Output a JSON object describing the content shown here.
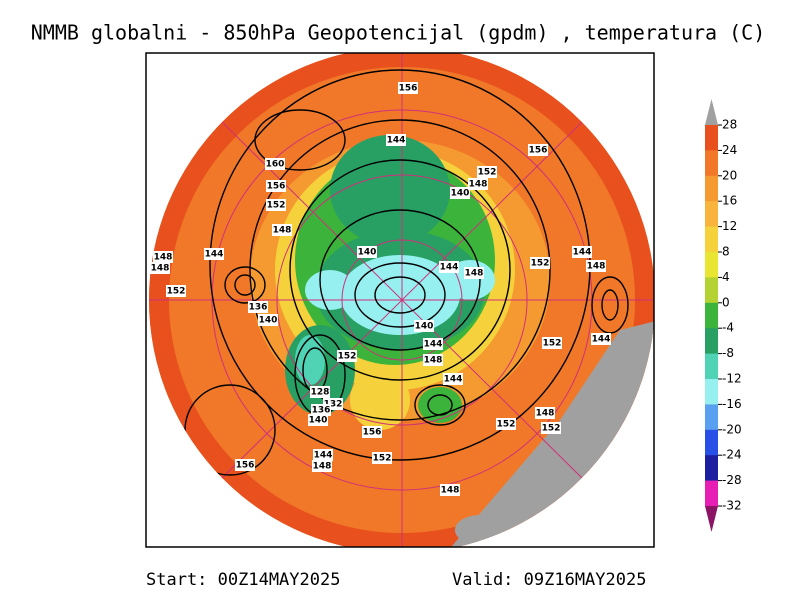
{
  "title": "NMMB globalni - 850hPa Geopotencijal (gpdm) , temperatura (C)",
  "start": "Start: 00Z14MAY2025",
  "valid": "Valid: 09Z16MAY2025",
  "legend": {
    "levels": [
      28,
      24,
      20,
      16,
      12,
      8,
      4,
      0,
      -4,
      -8,
      -12,
      -16,
      -20,
      -24,
      -28,
      -32
    ],
    "colors": [
      "#e8501e",
      "#f07828",
      "#f59a30",
      "#f8b43c",
      "#f5d23c",
      "#e8e632",
      "#b4d232",
      "#3cb43c",
      "#28a064",
      "#50d2b4",
      "#96f0f0",
      "#5aa0f0",
      "#2850e6",
      "#1e1ea0",
      "#e61eb4"
    ],
    "over_color": "#a0a0a0",
    "under_color": "#8c1464"
  },
  "contour_labels": [
    156,
    144,
    156,
    152,
    148,
    140,
    160,
    156,
    152,
    148,
    144,
    148,
    148,
    152,
    140,
    144,
    148,
    152,
    144,
    148,
    136,
    140,
    140,
    144,
    152,
    148,
    144,
    152,
    144,
    128,
    132,
    136,
    140,
    156,
    152,
    148,
    152,
    144,
    148,
    156,
    152,
    148
  ]
}
